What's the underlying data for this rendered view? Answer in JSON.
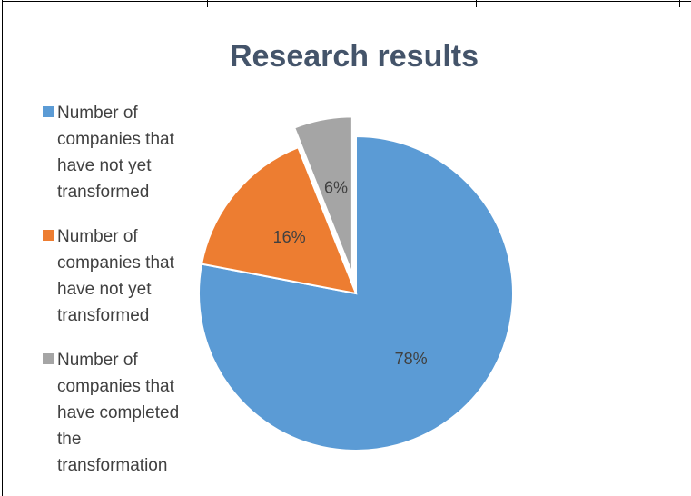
{
  "chart_data": {
    "type": "pie",
    "title": "Research results",
    "categories": [
      "Number of companies that have not yet transformed",
      "Number of companies that have not yet transformed",
      "Number of companies that have completed the transformation"
    ],
    "values": [
      78,
      16,
      6
    ],
    "value_labels": [
      "78%",
      "16%",
      "6%"
    ],
    "colors": [
      "#5b9bd5",
      "#ed7d31",
      "#a5a5a5"
    ],
    "legend": "left"
  }
}
